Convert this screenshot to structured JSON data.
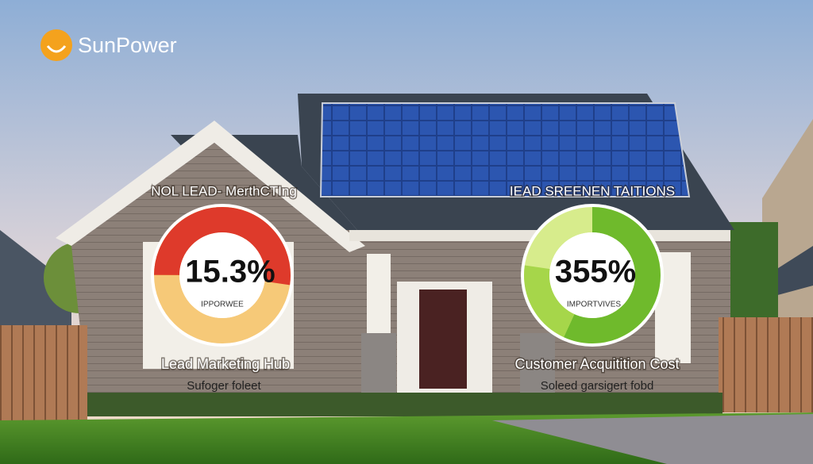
{
  "logo": {
    "text": "SunPower"
  },
  "panels": [
    {
      "heading": "NOL LEAD- MerthCTIng",
      "value": "15.3%",
      "sublabel": "IPPORWEE",
      "caption": "Lead Marketing Hub",
      "subcaption": "Sufoger foleet"
    },
    {
      "heading": "IEAD SREENEN TAITIONS",
      "value": "355%",
      "sublabel": "IMPORTVIVES",
      "caption": "Customer Acquitition Cost",
      "subcaption": "Soleed garsigert fobd"
    }
  ]
}
